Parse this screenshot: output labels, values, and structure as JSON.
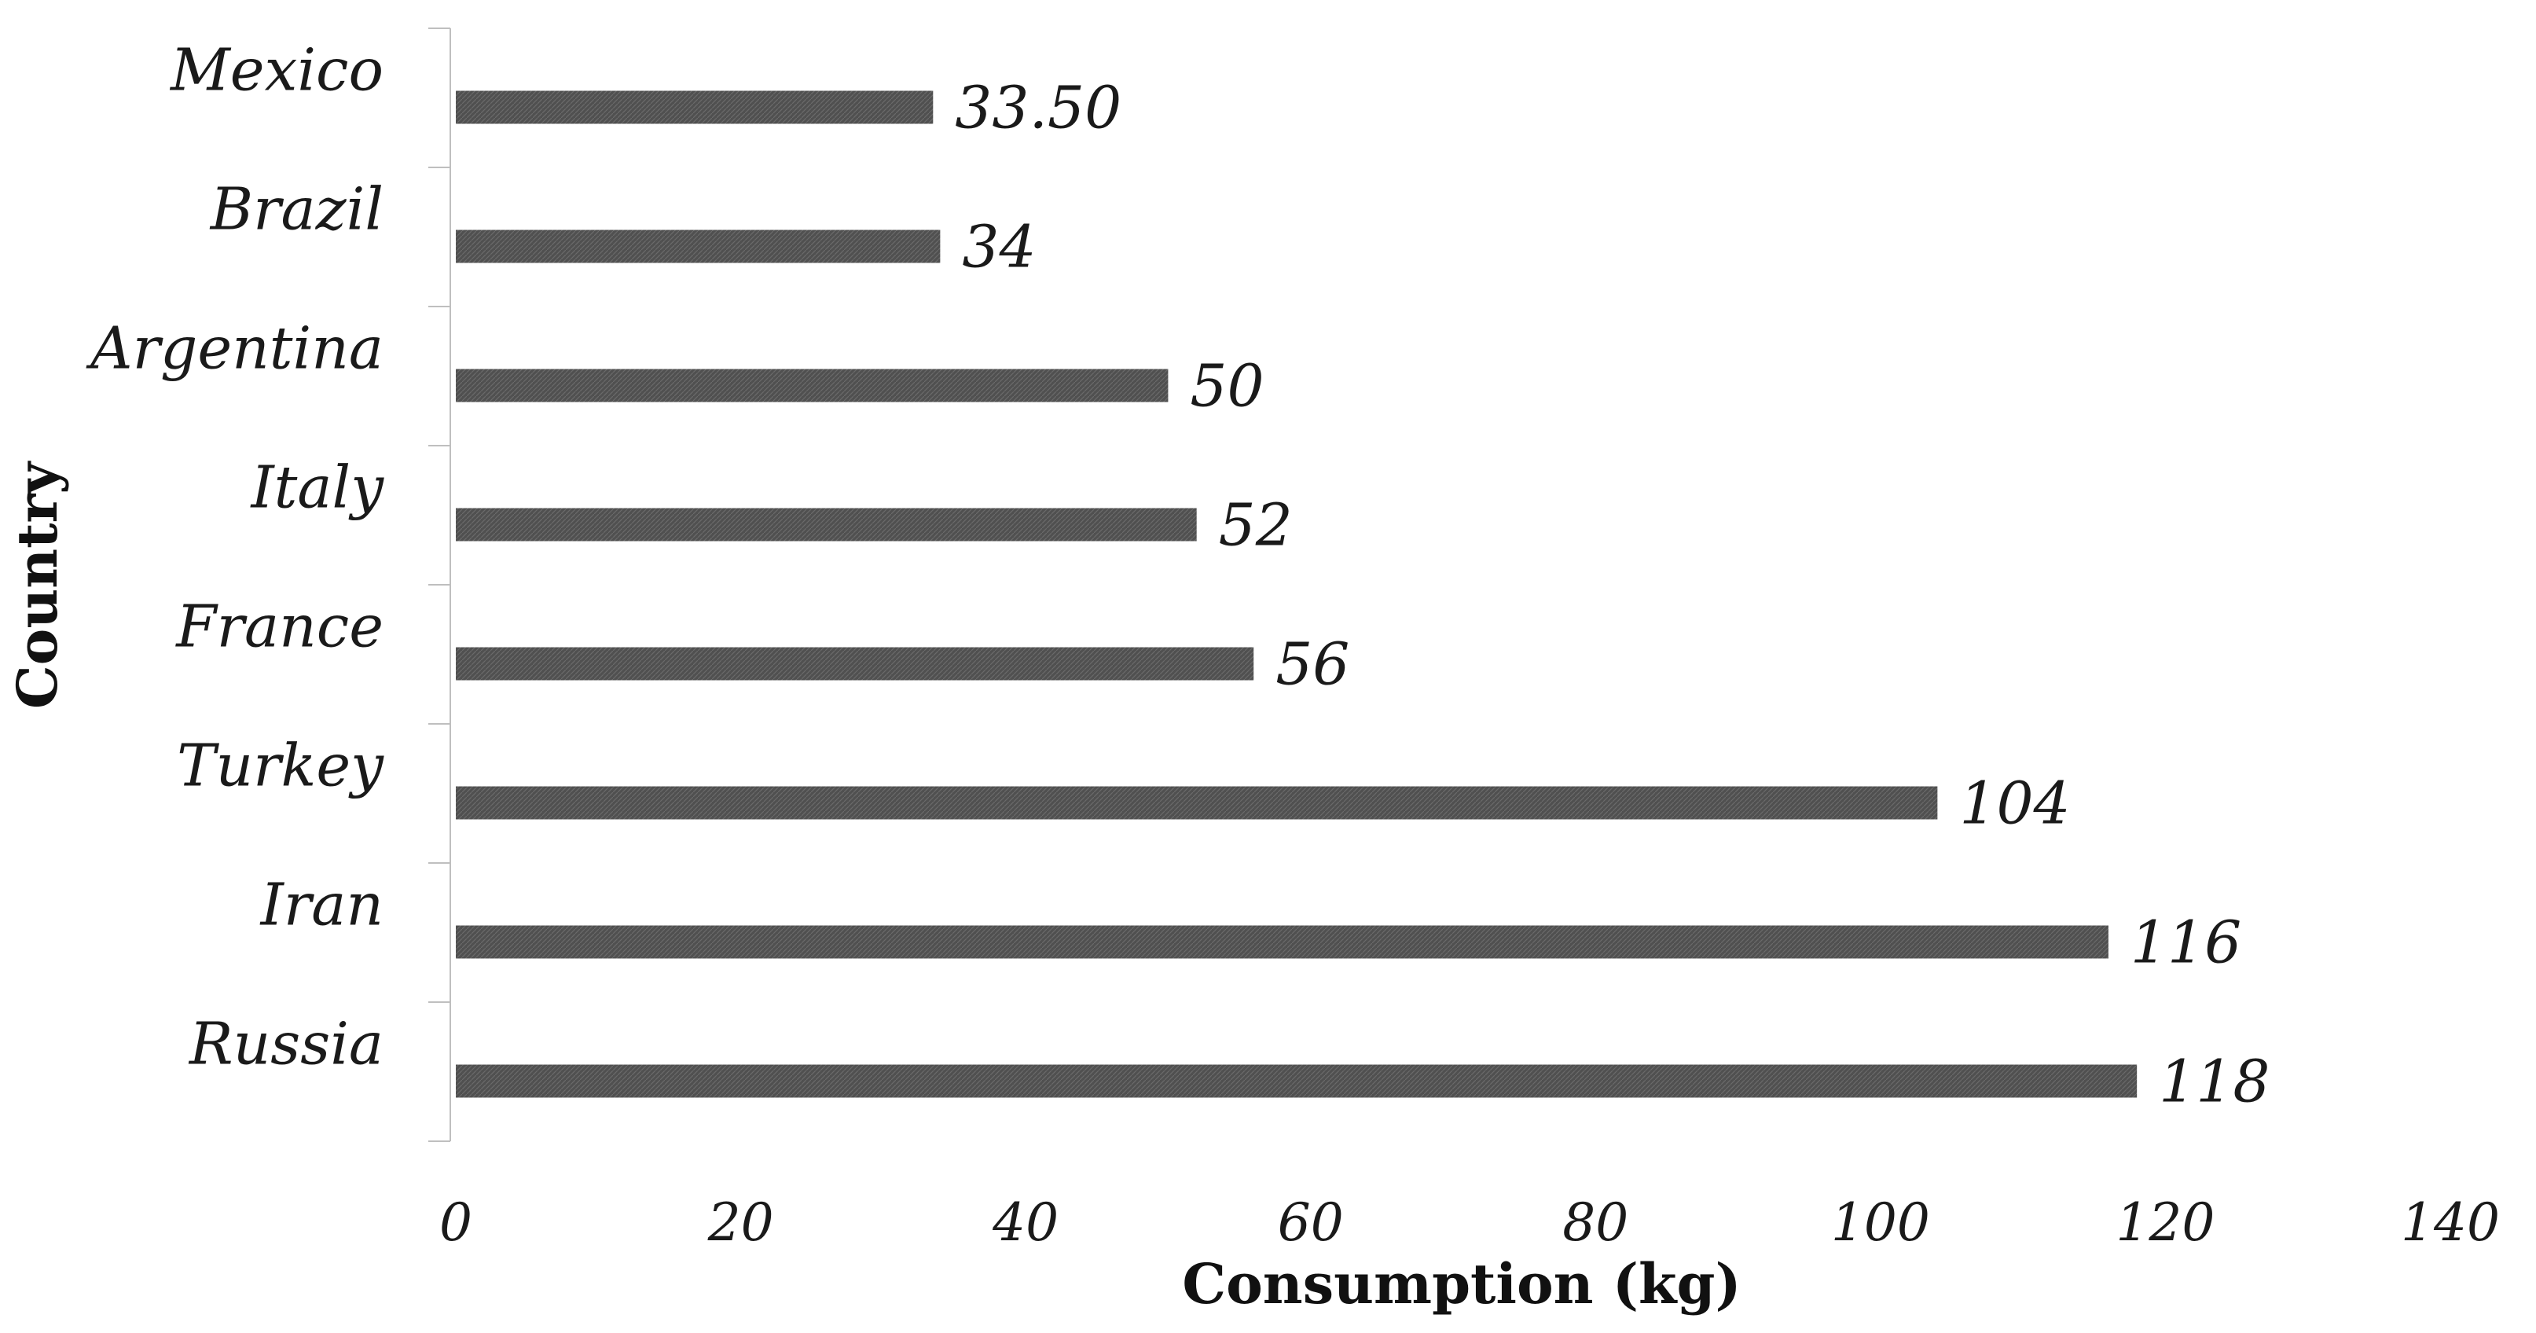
{
  "chart_data": {
    "type": "bar",
    "orientation": "horizontal",
    "title": "",
    "categories": [
      "Mexico",
      "Brazil",
      "Argentina",
      "Italy",
      "France",
      "Turkey",
      "Iran",
      "Russia"
    ],
    "values": [
      33.5,
      34,
      50,
      52,
      56,
      104,
      116,
      118
    ],
    "value_labels": [
      "33.50",
      "34",
      "50",
      "52",
      "56",
      "104",
      "116",
      "118"
    ],
    "xlabel": "Consumption (kg)",
    "ylabel": "Country",
    "xlim": [
      0,
      140
    ],
    "xticks": [
      0,
      20,
      40,
      60,
      80,
      100,
      120,
      140
    ],
    "grid": false,
    "legend": "none",
    "bar_color": "#505050"
  }
}
